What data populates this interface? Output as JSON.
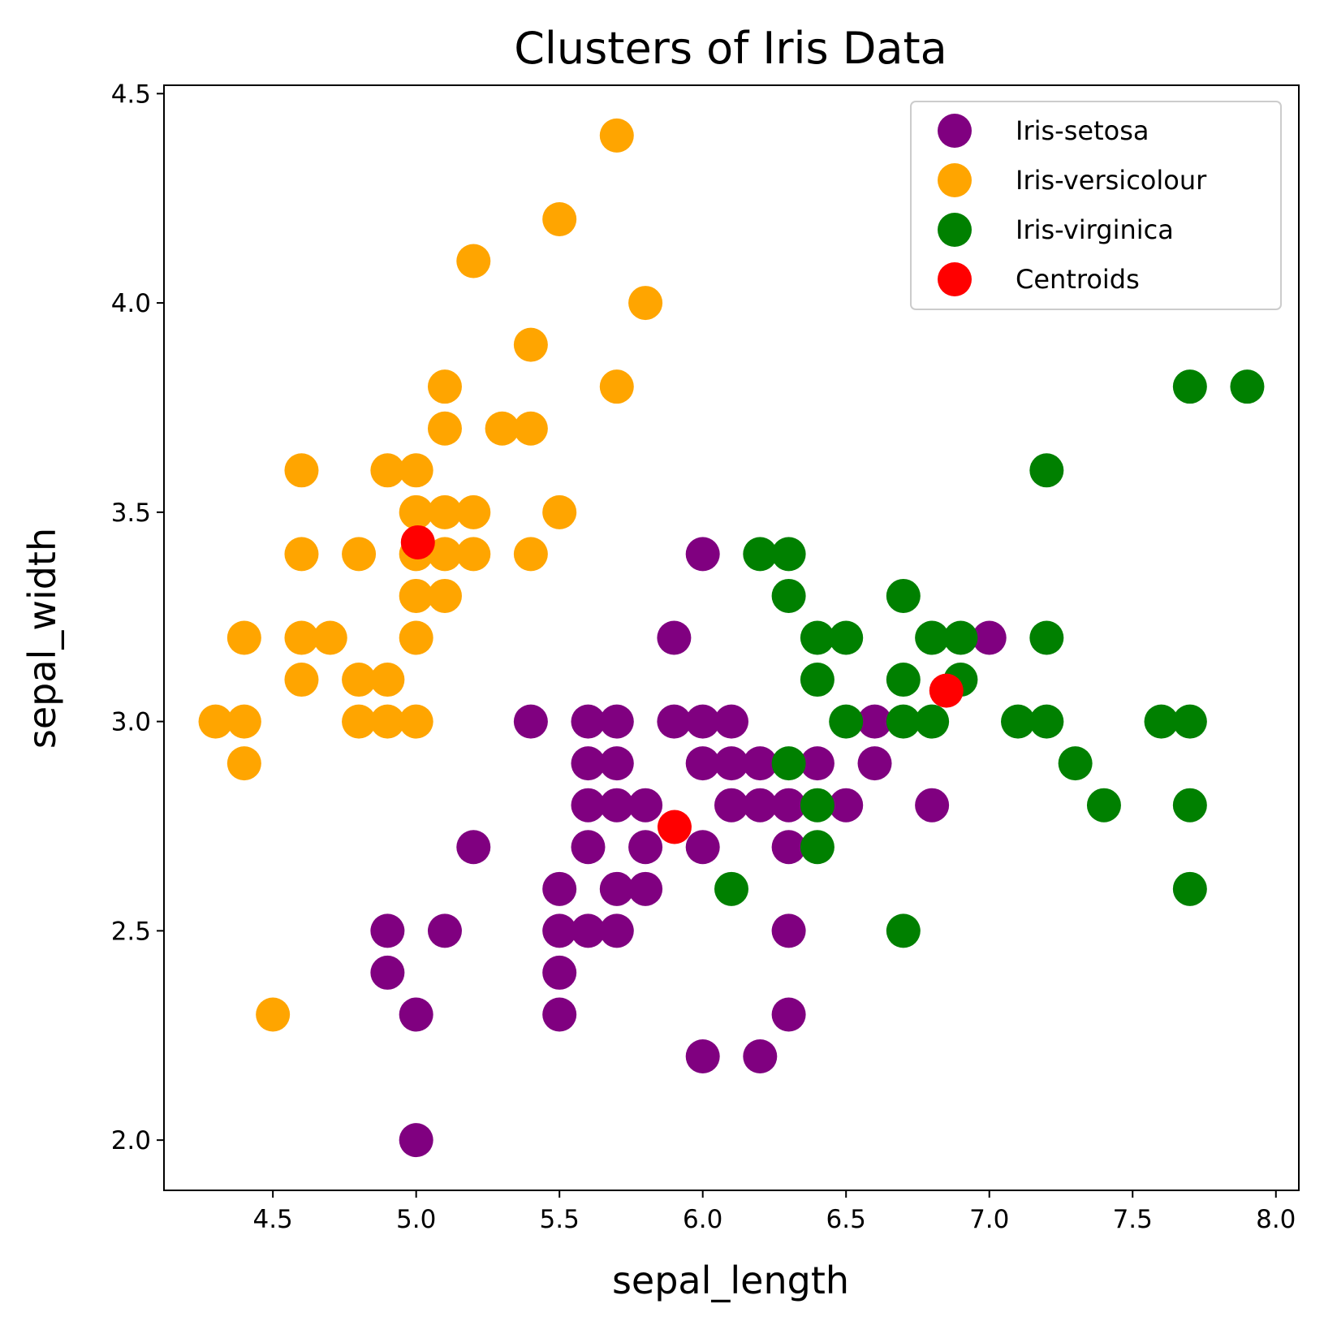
{
  "chart_data": {
    "type": "scatter",
    "title": "Clusters of Iris Data",
    "xlabel": "sepal_length",
    "ylabel": "sepal_width",
    "xlim": [
      4.12,
      8.08
    ],
    "ylim": [
      1.88,
      4.52
    ],
    "xticks": [
      "4.5",
      "5.0",
      "5.5",
      "6.0",
      "6.5",
      "7.0",
      "7.5",
      "8.0"
    ],
    "yticks": [
      "2.0",
      "2.5",
      "3.0",
      "3.5",
      "4.0",
      "4.5"
    ],
    "grid": false,
    "legend_position": "top-right",
    "series": [
      {
        "name": "Iris-setosa",
        "color": "#800080",
        "points": [
          [
            6.0,
            3.4
          ],
          [
            5.9,
            3.2
          ],
          [
            7.0,
            3.2
          ],
          [
            5.4,
            3.0
          ],
          [
            5.6,
            3.0
          ],
          [
            5.7,
            3.0
          ],
          [
            5.9,
            3.0
          ],
          [
            6.0,
            3.0
          ],
          [
            6.1,
            3.0
          ],
          [
            6.6,
            3.0
          ],
          [
            5.6,
            2.9
          ],
          [
            5.7,
            2.9
          ],
          [
            6.0,
            2.9
          ],
          [
            6.1,
            2.9
          ],
          [
            6.2,
            2.9
          ],
          [
            6.4,
            2.9
          ],
          [
            6.6,
            2.9
          ],
          [
            5.6,
            2.8
          ],
          [
            5.7,
            2.8
          ],
          [
            5.8,
            2.8
          ],
          [
            6.1,
            2.8
          ],
          [
            6.2,
            2.8
          ],
          [
            6.3,
            2.8
          ],
          [
            6.5,
            2.8
          ],
          [
            6.8,
            2.8
          ],
          [
            5.2,
            2.7
          ],
          [
            5.6,
            2.7
          ],
          [
            5.8,
            2.7
          ],
          [
            6.0,
            2.7
          ],
          [
            6.3,
            2.7
          ],
          [
            5.5,
            2.6
          ],
          [
            5.7,
            2.6
          ],
          [
            5.8,
            2.6
          ],
          [
            4.9,
            2.5
          ],
          [
            5.1,
            2.5
          ],
          [
            5.5,
            2.5
          ],
          [
            5.6,
            2.5
          ],
          [
            5.7,
            2.5
          ],
          [
            6.3,
            2.5
          ],
          [
            4.9,
            2.4
          ],
          [
            5.5,
            2.4
          ],
          [
            5.0,
            2.3
          ],
          [
            5.5,
            2.3
          ],
          [
            6.3,
            2.3
          ],
          [
            6.0,
            2.2
          ],
          [
            6.2,
            2.2
          ],
          [
            5.0,
            2.0
          ]
        ]
      },
      {
        "name": "Iris-versicolour",
        "color": "#ffa500",
        "points": [
          [
            5.7,
            4.4
          ],
          [
            5.5,
            4.2
          ],
          [
            5.2,
            4.1
          ],
          [
            5.8,
            4.0
          ],
          [
            5.4,
            3.9
          ],
          [
            5.1,
            3.8
          ],
          [
            5.7,
            3.8
          ],
          [
            5.1,
            3.7
          ],
          [
            5.3,
            3.7
          ],
          [
            5.4,
            3.7
          ],
          [
            4.6,
            3.6
          ],
          [
            4.9,
            3.6
          ],
          [
            5.0,
            3.6
          ],
          [
            5.0,
            3.5
          ],
          [
            5.1,
            3.5
          ],
          [
            5.2,
            3.5
          ],
          [
            5.5,
            3.5
          ],
          [
            4.6,
            3.4
          ],
          [
            4.8,
            3.4
          ],
          [
            5.0,
            3.4
          ],
          [
            5.1,
            3.4
          ],
          [
            5.2,
            3.4
          ],
          [
            5.4,
            3.4
          ],
          [
            5.0,
            3.3
          ],
          [
            5.1,
            3.3
          ],
          [
            4.4,
            3.2
          ],
          [
            4.6,
            3.2
          ],
          [
            4.7,
            3.2
          ],
          [
            5.0,
            3.2
          ],
          [
            4.6,
            3.1
          ],
          [
            4.8,
            3.1
          ],
          [
            4.9,
            3.1
          ],
          [
            4.3,
            3.0
          ],
          [
            4.4,
            3.0
          ],
          [
            4.8,
            3.0
          ],
          [
            4.9,
            3.0
          ],
          [
            5.0,
            3.0
          ],
          [
            4.4,
            2.9
          ],
          [
            4.5,
            2.3
          ]
        ]
      },
      {
        "name": "Iris-virginica",
        "color": "#008000",
        "points": [
          [
            7.7,
            3.8
          ],
          [
            7.9,
            3.8
          ],
          [
            7.2,
            3.6
          ],
          [
            6.2,
            3.4
          ],
          [
            6.3,
            3.4
          ],
          [
            6.3,
            3.3
          ],
          [
            6.7,
            3.3
          ],
          [
            6.4,
            3.2
          ],
          [
            6.5,
            3.2
          ],
          [
            6.8,
            3.2
          ],
          [
            6.9,
            3.2
          ],
          [
            7.2,
            3.2
          ],
          [
            6.4,
            3.1
          ],
          [
            6.7,
            3.1
          ],
          [
            6.9,
            3.1
          ],
          [
            6.5,
            3.0
          ],
          [
            6.7,
            3.0
          ],
          [
            6.8,
            3.0
          ],
          [
            7.1,
            3.0
          ],
          [
            7.2,
            3.0
          ],
          [
            7.6,
            3.0
          ],
          [
            7.7,
            3.0
          ],
          [
            6.3,
            2.9
          ],
          [
            7.3,
            2.9
          ],
          [
            6.4,
            2.8
          ],
          [
            7.4,
            2.8
          ],
          [
            7.7,
            2.8
          ],
          [
            6.4,
            2.7
          ],
          [
            6.1,
            2.6
          ],
          [
            7.7,
            2.6
          ],
          [
            6.7,
            2.5
          ]
        ]
      },
      {
        "name": "Centroids",
        "color": "#ff0000",
        "points": [
          [
            5.006,
            3.428
          ],
          [
            5.9016,
            2.748
          ],
          [
            6.85,
            3.0737
          ]
        ]
      }
    ]
  }
}
